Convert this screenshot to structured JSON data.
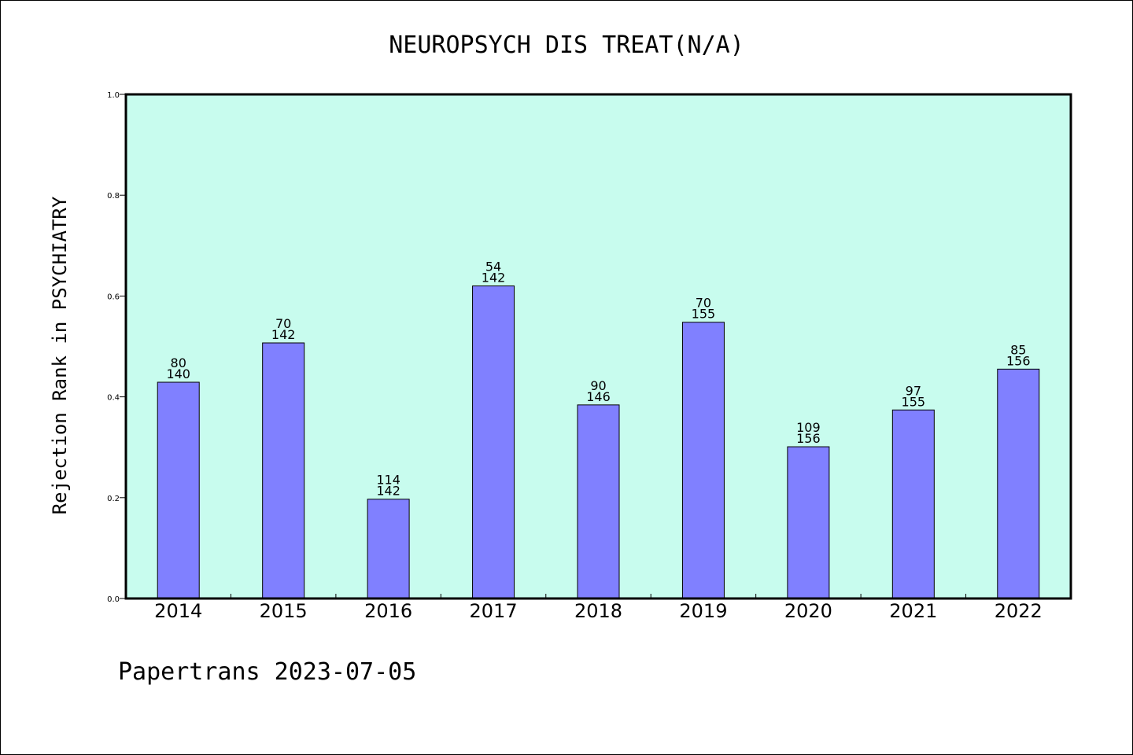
{
  "chart_data": {
    "type": "bar",
    "title": "NEUROPSYCH DIS TREAT(N/A)",
    "ylabel": "Rejection Rank in PSYCHIATRY",
    "xlabel": "",
    "ylim": [
      0,
      1.0
    ],
    "yticks": [
      "0.0",
      "0.2",
      "0.4",
      "0.6",
      "0.8",
      "1.0"
    ],
    "categories": [
      "2014",
      "2015",
      "2016",
      "2017",
      "2018",
      "2019",
      "2020",
      "2021",
      "2022"
    ],
    "values": [
      0.429,
      0.507,
      0.197,
      0.62,
      0.384,
      0.548,
      0.301,
      0.374,
      0.455
    ],
    "labels_top": [
      "80",
      "70",
      "114",
      "54",
      "90",
      "70",
      "109",
      "97",
      "85"
    ],
    "labels_bottom": [
      "140",
      "142",
      "142",
      "142",
      "146",
      "155",
      "156",
      "155",
      "156"
    ],
    "grid": false,
    "colors": {
      "plot_background": "#c8fcee",
      "bar_fill": "#8080ff",
      "bar_edge": "#000000"
    }
  },
  "footer": {
    "text": "Papertrans 2023-07-05"
  }
}
